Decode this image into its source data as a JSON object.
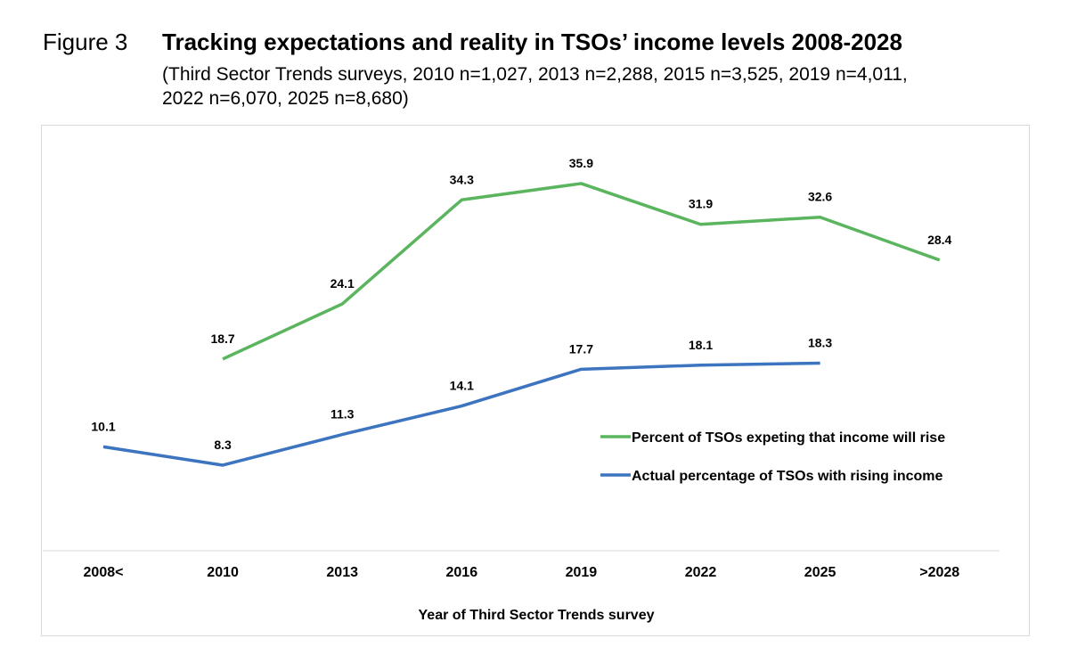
{
  "header": {
    "figure_label": "Figure 3",
    "title": "Tracking expectations and reality in TSOs’ income levels 2008-2028",
    "subtitle_line1": "(Third Sector Trends surveys, 2010 n=1,027, 2013 n=2,288, 2015 n=3,525, 2019 n=4,011,",
    "subtitle_line2": "2022 n=6,070, 2025 n=8,680)"
  },
  "chart_data": {
    "type": "line",
    "title": "Tracking expectations and reality in TSOs’ income levels 2008-2028",
    "xlabel": "Year of Third Sector Trends survey",
    "ylabel": "",
    "categories": [
      "2008<",
      "2010",
      "2013",
      "2016",
      "2019",
      "2022",
      "2025",
      ">2028"
    ],
    "ylim": [
      0,
      40
    ],
    "grid": false,
    "legend_position": "right",
    "series": [
      {
        "name": "Percent of TSOs expeting that income will rise",
        "color": "#5bb55f",
        "values": [
          null,
          18.7,
          24.1,
          34.3,
          35.9,
          31.9,
          32.6,
          28.4
        ]
      },
      {
        "name": "Actual percentage of TSOs with rising income",
        "color": "#3c74c0",
        "values": [
          10.1,
          8.3,
          11.3,
          14.1,
          17.7,
          18.1,
          18.3,
          null
        ]
      }
    ]
  }
}
